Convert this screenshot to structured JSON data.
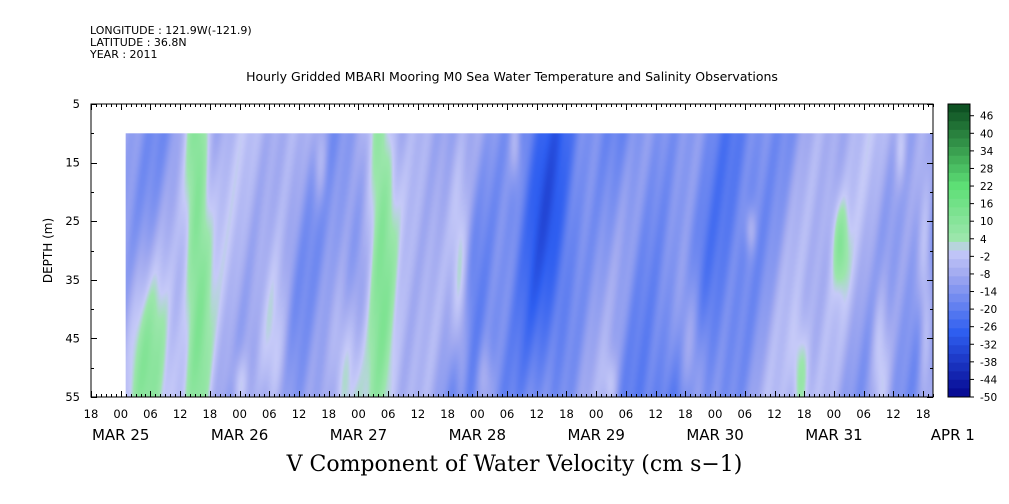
{
  "header": {
    "longitude": "LONGITUDE : 121.9W(-121.9)",
    "latitude": "LATITUDE : 36.8N",
    "year": "YEAR : 2011"
  },
  "chart_data": {
    "type": "heatmap",
    "title": "Hourly Gridded MBARI Mooring M0 Sea Water Temperature and Salinity Observations",
    "variable_title": "V Component of Water Velocity (cm s−1)",
    "ylabel": "DEPTH (m)",
    "y_ticks": [
      5,
      15,
      25,
      35,
      45,
      55
    ],
    "ylim": [
      55,
      5
    ],
    "data_depth_range": [
      10,
      55
    ],
    "x_hour_ticks": [
      "18",
      "00",
      "06",
      "12",
      "18",
      "00",
      "06",
      "12",
      "18",
      "00",
      "06",
      "12",
      "18",
      "00",
      "06",
      "12",
      "18",
      "00",
      "06",
      "12",
      "18",
      "00",
      "06",
      "12",
      "18",
      "00",
      "06",
      "12",
      "18"
    ],
    "x_date_labels": [
      "MAR 25",
      "MAR 26",
      "MAR 27",
      "MAR 28",
      "MAR 29",
      "MAR 30",
      "MAR 31",
      "APR  1"
    ],
    "xlim": [
      "2011-03-25T18:00",
      "2011-04-01T20:00"
    ],
    "data_time_start": "2011-03-26T01:00",
    "colorbar_labels": [
      "46",
      "40",
      "34",
      "28",
      "22",
      "16",
      "10",
      "4",
      "-2",
      "-8",
      "-14",
      "-20",
      "-26",
      "-32",
      "-38",
      "-44",
      "-50"
    ],
    "colorbar_range": [
      -50,
      50
    ],
    "colors": {
      "strong_negative": "#05078f",
      "negative": "#2e5ef0",
      "weak_negative": "#a2aaf0",
      "near_zero": "#c6caf8",
      "weak_positive": "#9ce6ac",
      "positive": "#5ddf75",
      "strong_positive": "#0a4a1e"
    }
  }
}
